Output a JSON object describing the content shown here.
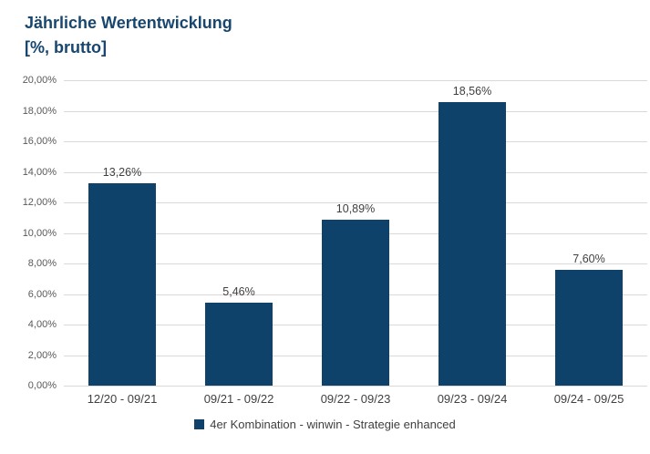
{
  "title": {
    "line1": "Jährliche Wertentwicklung",
    "line2": "[%, brutto]"
  },
  "colors": {
    "bar": "#0E426B",
    "title": "#17466F",
    "gridline": "#D9D9D9",
    "y_axis_text": "#595959",
    "label_text": "#404040"
  },
  "chart_data": {
    "type": "bar",
    "title": "Jährliche Wertentwicklung [%, brutto]",
    "categories": [
      "12/20 - 09/21",
      "09/21 - 09/22",
      "09/22 - 09/23",
      "09/23 - 09/24",
      "09/24 - 09/25"
    ],
    "values": [
      13.26,
      5.46,
      10.89,
      18.56,
      7.6
    ],
    "value_labels": [
      "13,26%",
      "5,46%",
      "10,89%",
      "18,56%",
      "7,60%"
    ],
    "xlabel": "",
    "ylabel": "",
    "ylim": [
      0,
      20
    ],
    "ytick_step": 2,
    "ytick_labels": [
      "0,00%",
      "2,00%",
      "4,00%",
      "6,00%",
      "8,00%",
      "10,00%",
      "12,00%",
      "14,00%",
      "16,00%",
      "18,00%",
      "20,00%"
    ],
    "grid": true,
    "legend_position": "bottom",
    "legend_entries": [
      "4er Kombination - winwin - Strategie enhanced"
    ]
  },
  "legend": {
    "label": "4er Kombination - winwin - Strategie enhanced"
  }
}
